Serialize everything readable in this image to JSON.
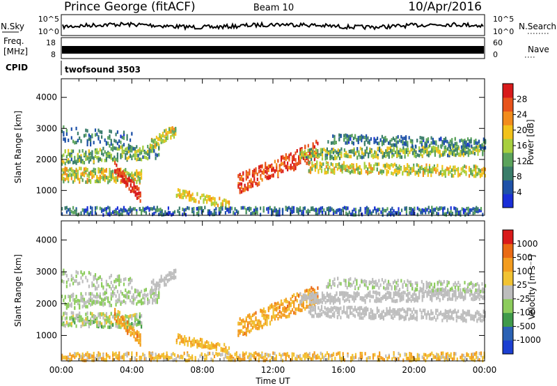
{
  "header": {
    "station": "Prince George (fitACF)",
    "beam": "Beam 10",
    "date": "10/Apr/2016"
  },
  "colors": {
    "power_scale": [
      "#1a2fd8",
      "#1f52a8",
      "#3a7d6a",
      "#5ba35c",
      "#a7cf3f",
      "#f2c21a",
      "#f28c1c",
      "#e8531b",
      "#d81a1a"
    ],
    "velocity_scale": [
      "#1b3fd1",
      "#2b62b4",
      "#3f9a4a",
      "#8ccc5c",
      "#bdbdbd",
      "#f1c232",
      "#f39c1f",
      "#ea6a14",
      "#d91a1a"
    ]
  },
  "strips": {
    "nsky": {
      "label": "N.Sky",
      "ticks": [
        "10^5",
        "10^0"
      ]
    },
    "nsearch": {
      "label": "N.Search"
    },
    "freq": {
      "label_line1": "Freq.",
      "label_line2": "[MHz]",
      "ticks": [
        "18",
        "8"
      ]
    },
    "nave": {
      "label": "Nave",
      "ticks": [
        "60",
        "0"
      ]
    },
    "cpid": {
      "label": "CPID",
      "value": "twofsound 3503"
    }
  },
  "chart_data": [
    {
      "type": "heatmap",
      "title": "",
      "ylabel": "Slant Range [km]",
      "xlabel": "",
      "y_ticks": [
        "4000",
        "3000",
        "2000",
        "1000"
      ],
      "ylim": [
        200,
        4600
      ],
      "xlim": [
        "00:00",
        "24:00"
      ],
      "colorbar": {
        "label": "Power [dB]",
        "ticks": [
          "28",
          "24",
          "20",
          "16",
          "12",
          "8",
          "4"
        ],
        "range": [
          0,
          30
        ]
      }
    },
    {
      "type": "heatmap",
      "title": "",
      "ylabel": "Slant Range [km]",
      "xlabel": "Time UT",
      "x_ticks": [
        "00:00",
        "04:00",
        "08:00",
        "12:00",
        "16:00",
        "20:00",
        "00:00"
      ],
      "y_ticks": [
        "4000",
        "3000",
        "2000",
        "1000"
      ],
      "ylim": [
        200,
        4600
      ],
      "xlim": [
        "00:00",
        "24:00"
      ],
      "colorbar": {
        "label": "Velocity [m s⁻¹]",
        "ticks": [
          "1000",
          "500",
          "100",
          "25",
          "-25",
          "-100",
          "-500",
          "-1000"
        ],
        "range": [
          -1000,
          1000
        ]
      }
    }
  ]
}
